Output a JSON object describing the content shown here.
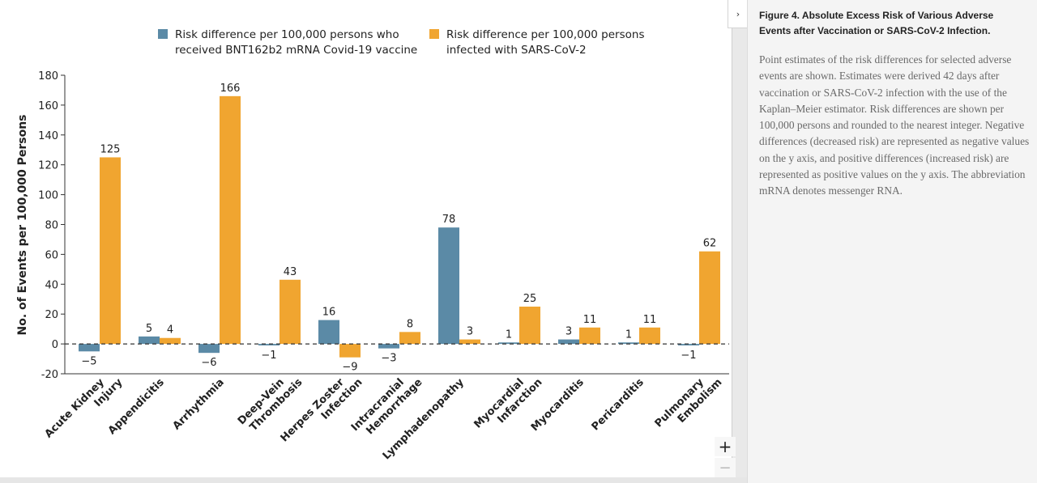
{
  "chart_data": {
    "type": "bar",
    "categories": [
      [
        "Acute Kidney",
        "Injury"
      ],
      [
        "Appendicitis"
      ],
      [
        "Arrhythmia"
      ],
      [
        "Deep-Vein",
        "Thrombosis"
      ],
      [
        "Herpes Zoster",
        "Infection"
      ],
      [
        "Intracranial",
        "Hemorrhage"
      ],
      [
        "Lymphadenopathy"
      ],
      [
        "Myocardial",
        "Infarction"
      ],
      [
        "Myocarditis"
      ],
      [
        "Pericarditis"
      ],
      [
        "Pulmonary",
        "Embolism"
      ]
    ],
    "series": [
      {
        "name": "Risk difference per 100,000 persons who received BNT162b2 mRNA Covid-19 vaccine",
        "legend_lines": [
          "Risk difference per 100,000 persons who",
          "received BNT162b2 mRNA Covid-19 vaccine"
        ],
        "color": "#5b8aa6",
        "values": [
          -5,
          5,
          -6,
          -1,
          16,
          -3,
          78,
          1,
          3,
          1,
          -1
        ]
      },
      {
        "name": "Risk difference per 100,000 persons infected with SARS-CoV-2",
        "legend_lines": [
          "Risk difference per 100,000 persons",
          "infected with SARS-CoV-2"
        ],
        "color": "#f0a530",
        "values": [
          125,
          4,
          166,
          43,
          -9,
          8,
          3,
          25,
          11,
          11,
          62
        ]
      }
    ],
    "ylabel": "No. of Events per 100,000 Persons",
    "ylim": [
      -20,
      180
    ],
    "yticks": [
      -20,
      0,
      20,
      40,
      60,
      80,
      100,
      120,
      140,
      160,
      180
    ],
    "zero_line": "dashed",
    "legend_position": "top"
  },
  "caption": {
    "title": "Figure 4. Absolute Excess Risk of Various Adverse Events after Vaccination or SARS-CoV-2 Infection.",
    "body": "Point estimates of the risk differences for selected adverse events are shown. Estimates were derived 42 days after vaccination or SARS-CoV-2 infection with the use of the Kaplan–Meier estimator. Risk differences are shown per 100,000 persons and rounded to the nearest integer. Negative differences (decreased risk) are represented as negative values on the y axis, and positive differences (increased risk) are represented as positive values on the y axis. The abbreviation mRNA denotes messenger RNA."
  },
  "controls": {
    "zoom_in": "+",
    "zoom_out": "−",
    "collapse": "›"
  }
}
